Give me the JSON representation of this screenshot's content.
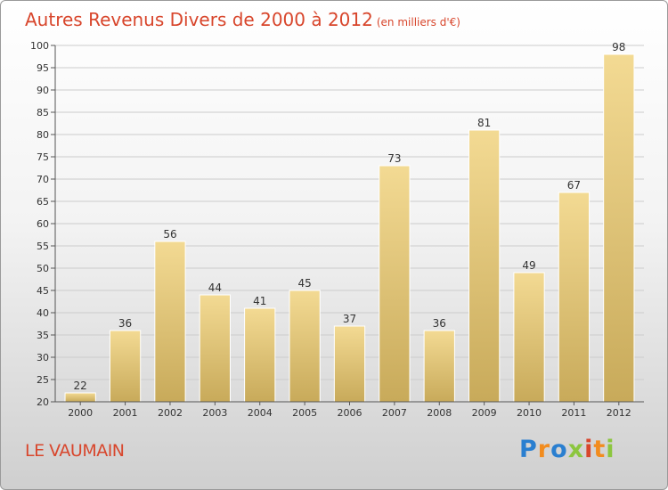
{
  "header": {
    "title": "Autres Revenus Divers de 2000 à 2012",
    "unit": "(en milliers d'€)"
  },
  "footer": {
    "commune": "LE VAUMAIN",
    "logo_text": "Proxiti"
  },
  "colors": {
    "title": "#d8462c",
    "bar_light": "#f3da93",
    "bar_dark": "#c8aa5a",
    "logo": [
      "#2a7fd0",
      "#f28c1e",
      "#2a7fd0",
      "#8cc63f",
      "#d8462c",
      "#f28c1e",
      "#8cc63f"
    ]
  },
  "chart_data": {
    "type": "bar",
    "title": "Autres Revenus Divers de 2000 à 2012",
    "subtitle": "(en milliers d'€)",
    "categories": [
      "2000",
      "2001",
      "2002",
      "2003",
      "2004",
      "2005",
      "2006",
      "2007",
      "2008",
      "2009",
      "2010",
      "2011",
      "2012"
    ],
    "values": [
      22,
      36,
      56,
      44,
      41,
      45,
      37,
      73,
      36,
      81,
      49,
      67,
      98
    ],
    "ylim": [
      20,
      100
    ],
    "yticks": [
      20,
      25,
      30,
      35,
      40,
      45,
      50,
      55,
      60,
      65,
      70,
      75,
      80,
      85,
      90,
      95,
      100
    ],
    "grid": true,
    "data_labels": true
  }
}
